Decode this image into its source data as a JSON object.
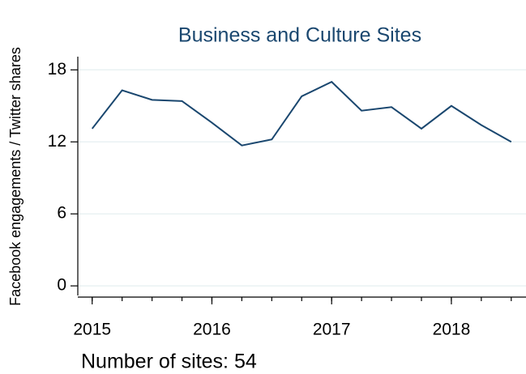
{
  "chart_data": {
    "type": "line",
    "title": "Business and Culture Sites",
    "ylabel": "Facebook engagements / Twitter shares",
    "note": "Number of sites: 54",
    "x": [
      2015,
      2015.25,
      2015.5,
      2015.75,
      2016,
      2016.25,
      2016.5,
      2016.75,
      2017,
      2017.25,
      2017.5,
      2017.75,
      2018,
      2018.25,
      2018.5
    ],
    "series": [
      {
        "name": "Facebook engagements / Twitter shares",
        "color": "#1a476f",
        "values": [
          13.1,
          16.3,
          15.5,
          15.4,
          13.6,
          11.7,
          12.2,
          15.8,
          17.0,
          14.6,
          14.9,
          13.1,
          15.0,
          13.4,
          12.0
        ]
      }
    ],
    "xlim": [
      2014.88,
      2018.63
    ],
    "xticks": [
      2015,
      2016,
      2017,
      2018
    ],
    "ylim": [
      -0.8,
      19.1
    ],
    "yticks": [
      0,
      6,
      12,
      18
    ],
    "grid": true
  }
}
